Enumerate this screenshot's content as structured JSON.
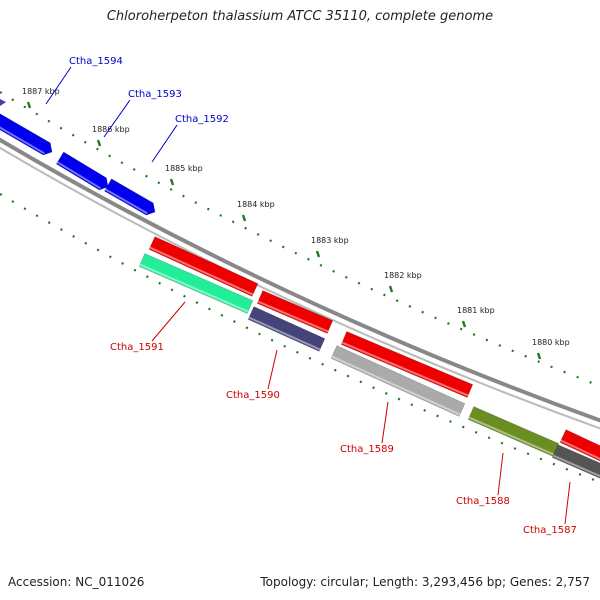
{
  "title": "Chloroherpeton thalassium ATCC 35110, complete genome",
  "footer": {
    "accession": "Accession: NC_011026",
    "summary": "Topology: circular; Length: 3,293,456 bp; Genes: 2,757"
  },
  "colors": {
    "forward_label": "#0000cc",
    "reverse_label": "#cc0000",
    "tick": "#1f7a1f",
    "backbone": "#888888"
  },
  "kbp_ticks": [
    "1887 kbp",
    "1886 kbp",
    "1885 kbp",
    "1884 kbp",
    "1883 kbp",
    "1882 kbp",
    "1881 kbp",
    "1880 kbp"
  ],
  "forward_genes": [
    {
      "label": "Ctha_1594",
      "color": "#0000ee"
    },
    {
      "label": "Ctha_1593",
      "color": "#0000ee"
    },
    {
      "label": "Ctha_1592",
      "color": "#0000ee"
    }
  ],
  "reverse_genes": [
    {
      "label": "Ctha_1591",
      "color": "#22ee99"
    },
    {
      "label": "Ctha_1590",
      "color": "#44447a"
    },
    {
      "label": "Ctha_1589",
      "color": "#aaaaaa"
    },
    {
      "label": "Ctha_1588",
      "color": "#6b8e23"
    },
    {
      "label": "Ctha_1587",
      "color": "#555555"
    }
  ],
  "reverse_red_genes": [
    {
      "color": "#ee0000"
    },
    {
      "color": "#ee0000"
    },
    {
      "color": "#ee0000"
    },
    {
      "color": "#ee0000"
    }
  ]
}
